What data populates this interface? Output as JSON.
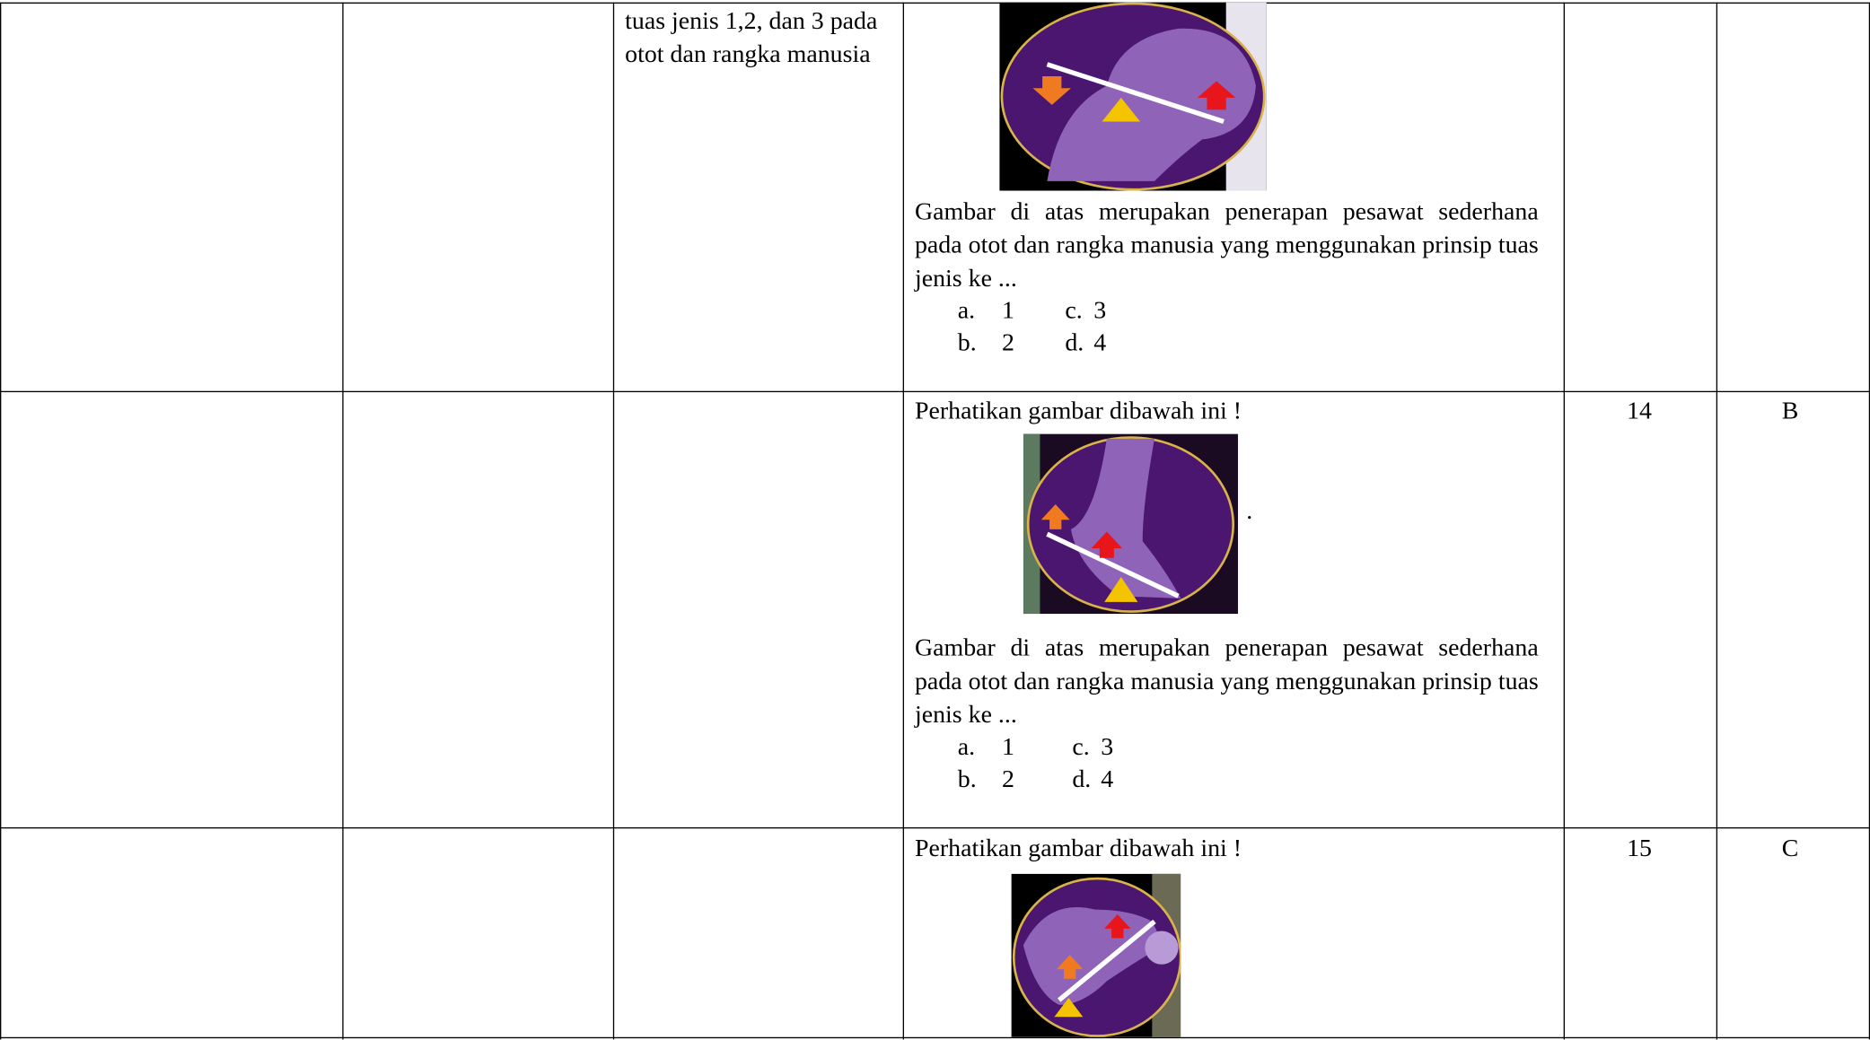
{
  "table": {
    "rows": [
      {
        "topic": "tuas jenis 1,2, dan 3 pada otot dan rangka manusia",
        "question": "Gambar di atas merupakan penerapan pesawat sederhana pada otot dan rangka manusia yang menggunakan prinsip tuas jenis ke  ...",
        "options": [
          {
            "letter": "a.",
            "text": "1"
          },
          {
            "letter": "b.",
            "text": "2"
          },
          {
            "letter": "c.",
            "text": "3"
          },
          {
            "letter": "d.",
            "text": "4"
          }
        ]
      },
      {
        "intro": "Perhatikan gambar dibawah ini !",
        "mark": ".",
        "question": "Gambar di atas merupakan penerapan pesawat sederhana pada otot dan rangka manusia yang menggunakan prinsip tuas jenis ke  ...",
        "options": [
          {
            "letter": "a.",
            "text": "1"
          },
          {
            "letter": "b.",
            "text": "2"
          },
          {
            "letter": "c.",
            "text": "3"
          },
          {
            "letter": "d.",
            "text": "4"
          }
        ],
        "number": "14",
        "answer": "B"
      },
      {
        "intro": "Perhatikan gambar dibawah ini !",
        "number": "15",
        "answer": "C"
      }
    ]
  }
}
